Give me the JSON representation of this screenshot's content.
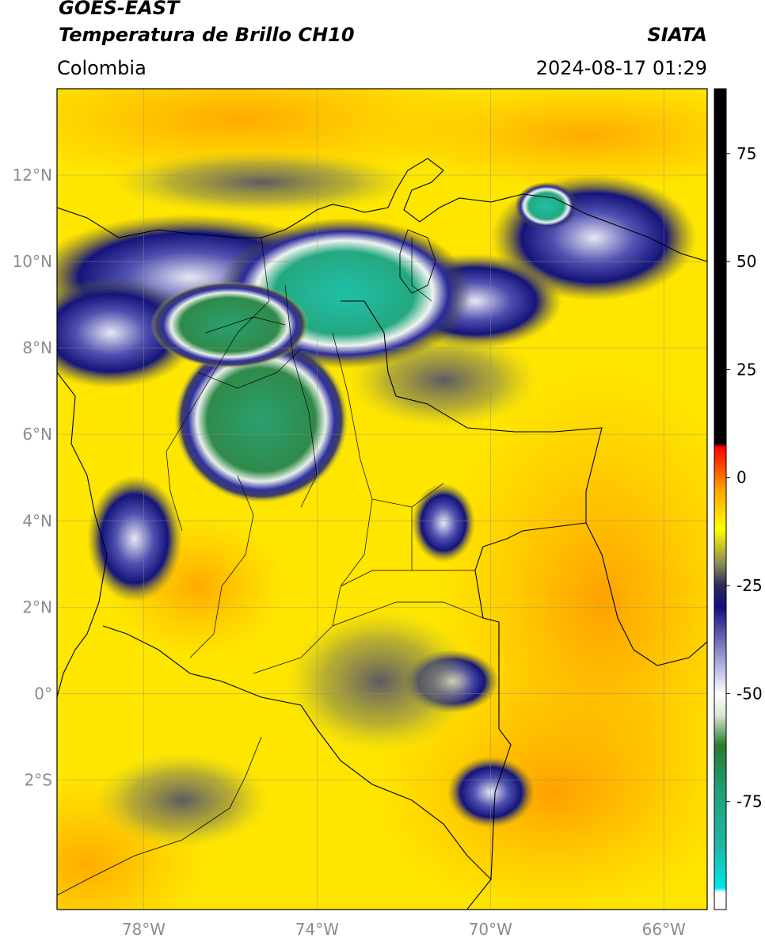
{
  "header": {
    "satellite": "GOES-EAST",
    "product": "Temperatura de Brillo CH10",
    "region": "Colombia",
    "agency": "SIATA",
    "timestamp": "2024-08-17 01:29"
  },
  "map": {
    "lon_range": [
      -80,
      -65
    ],
    "lat_range": [
      -5,
      14
    ],
    "lat_ticks": [
      {
        "value": 12,
        "label": "12°N"
      },
      {
        "value": 10,
        "label": "10°N"
      },
      {
        "value": 8,
        "label": "8°N"
      },
      {
        "value": 6,
        "label": "6°N"
      },
      {
        "value": 4,
        "label": "4°N"
      },
      {
        "value": 2,
        "label": "2°N"
      },
      {
        "value": 0,
        "label": "0°"
      },
      {
        "value": -2,
        "label": "2°S"
      }
    ],
    "lon_ticks": [
      {
        "value": -78,
        "label": "78°W"
      },
      {
        "value": -74,
        "label": "74°W"
      },
      {
        "value": -70,
        "label": "70°W"
      },
      {
        "value": -66,
        "label": "66°W"
      }
    ],
    "gridlines": true
  },
  "colorbar": {
    "range": [
      -100,
      90
    ],
    "ticks": [
      {
        "value": 75,
        "label": "75"
      },
      {
        "value": 50,
        "label": "50"
      },
      {
        "value": 25,
        "label": "25"
      },
      {
        "value": 0,
        "label": "0"
      },
      {
        "value": -25,
        "label": "-25"
      },
      {
        "value": -50,
        "label": "-50"
      },
      {
        "value": -75,
        "label": "-75"
      }
    ],
    "stops": [
      {
        "value": -100,
        "color": "#ffffff"
      },
      {
        "value": -96,
        "color": "#ffffff"
      },
      {
        "value": -95,
        "color": "#00e6e6"
      },
      {
        "value": -85,
        "color": "#1fb7a5"
      },
      {
        "value": -72,
        "color": "#1f9e78"
      },
      {
        "value": -62,
        "color": "#2b7a2b"
      },
      {
        "value": -55,
        "color": "#d8e8d0"
      },
      {
        "value": -50,
        "color": "#ffffff"
      },
      {
        "value": -42,
        "color": "#a0a0d8"
      },
      {
        "value": -30,
        "color": "#101080"
      },
      {
        "value": -25,
        "color": "#2a2a55"
      },
      {
        "value": -20,
        "color": "#8a8a55"
      },
      {
        "value": -12,
        "color": "#ffff00"
      },
      {
        "value": -3,
        "color": "#ffa500"
      },
      {
        "value": 7,
        "color": "#ff0000"
      },
      {
        "value": 8,
        "color": "#000000"
      },
      {
        "value": 90,
        "color": "#000000"
      }
    ]
  }
}
